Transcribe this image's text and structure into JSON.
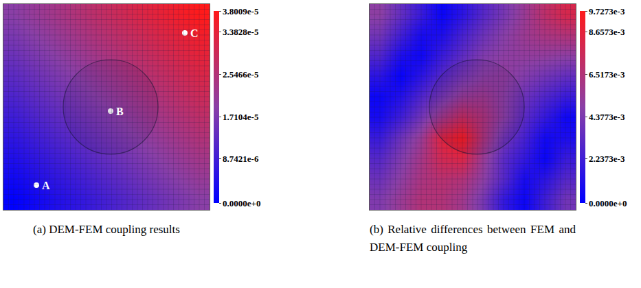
{
  "chart_data": [
    {
      "type": "heatmap",
      "caption": "(a) DEM-FEM coupling results",
      "tick_labels": false,
      "x": [
        0.05,
        0.15,
        0.25,
        0.35,
        0.45,
        0.55,
        0.65,
        0.75,
        0.85,
        0.95
      ],
      "y": [
        0.05,
        0.15,
        0.25,
        0.35,
        0.45,
        0.55,
        0.65,
        0.75,
        0.85,
        0.95
      ],
      "xlim": [
        0,
        1
      ],
      "ylim": [
        0,
        1
      ],
      "cells": [
        [
          0,
          2.1e-06,
          4.2e-06,
          6.3e-06,
          8.4e-06,
          1.06e-05,
          1.27e-05,
          1.48e-05,
          1.69e-05,
          1.9e-05
        ],
        [
          2.1e-06,
          4.2e-06,
          6.3e-06,
          8.4e-06,
          1.06e-05,
          1.27e-05,
          1.48e-05,
          1.69e-05,
          1.9e-05,
          2.11e-05
        ],
        [
          4.2e-06,
          6.3e-06,
          8.4e-06,
          1.06e-05,
          1.27e-05,
          1.48e-05,
          1.69e-05,
          1.9e-05,
          2.11e-05,
          2.32e-05
        ],
        [
          6.3e-06,
          8.4e-06,
          1.06e-05,
          1.27e-05,
          1.48e-05,
          1.69e-05,
          1.9e-05,
          2.11e-05,
          2.32e-05,
          2.53e-05
        ],
        [
          8.4e-06,
          1.06e-05,
          1.27e-05,
          1.48e-05,
          1.69e-05,
          1.9e-05,
          2.11e-05,
          2.32e-05,
          2.53e-05,
          2.74e-05
        ],
        [
          1.06e-05,
          1.27e-05,
          1.48e-05,
          1.69e-05,
          1.9e-05,
          2.11e-05,
          2.32e-05,
          2.53e-05,
          2.74e-05,
          2.95e-05
        ],
        [
          1.27e-05,
          1.48e-05,
          1.69e-05,
          1.9e-05,
          2.11e-05,
          2.32e-05,
          2.53e-05,
          2.74e-05,
          2.95e-05,
          3.17e-05
        ],
        [
          1.48e-05,
          1.69e-05,
          1.9e-05,
          2.11e-05,
          2.32e-05,
          2.53e-05,
          2.74e-05,
          2.95e-05,
          3.17e-05,
          3.38e-05
        ],
        [
          1.69e-05,
          1.9e-05,
          2.11e-05,
          2.32e-05,
          2.53e-05,
          2.74e-05,
          2.95e-05,
          3.17e-05,
          3.38e-05,
          3.59e-05
        ],
        [
          1.9e-05,
          2.11e-05,
          2.32e-05,
          2.53e-05,
          2.74e-05,
          2.95e-05,
          3.17e-05,
          3.38e-05,
          3.59e-05,
          3.8e-05
        ]
      ],
      "colorbar": {
        "range": [
          0,
          3.8009e-05
        ],
        "ticks": [
          {
            "value": 0,
            "label": "0.0000e+0"
          },
          {
            "value": 8.7421e-06,
            "label": "8.7421e-6"
          },
          {
            "value": 1.7104e-05,
            "label": "1.7104e-5"
          },
          {
            "value": 2.5466e-05,
            "label": "2.5466e-5"
          },
          {
            "value": 3.3828e-05,
            "label": "3.3828e-5"
          },
          {
            "value": 3.8009e-05,
            "label": "3.8009e-5"
          }
        ]
      },
      "annotations": [
        {
          "text": "A",
          "x": 0.16,
          "y": 0.12
        },
        {
          "text": "B",
          "x": 0.52,
          "y": 0.48
        },
        {
          "text": "C",
          "x": 0.88,
          "y": 0.86
        }
      ]
    },
    {
      "type": "heatmap",
      "caption": "(b) Relative differences between FEM and DEM-FEM coupling",
      "tick_labels": false,
      "x": [
        0.05,
        0.15,
        0.25,
        0.35,
        0.45,
        0.55,
        0.65,
        0.75,
        0.85,
        0.95
      ],
      "y": [
        0.05,
        0.15,
        0.25,
        0.35,
        0.45,
        0.55,
        0.65,
        0.75,
        0.85,
        0.95
      ],
      "xlim": [
        0,
        1
      ],
      "ylim": [
        0,
        1
      ],
      "cells": [
        [
          0.0045,
          0.0055,
          0.0065,
          0.0065,
          0.0058,
          0.0042,
          0.0018,
          0.0004,
          0.0022,
          0.004
        ],
        [
          0.0038,
          0.005,
          0.0062,
          0.0068,
          0.0065,
          0.005,
          0.003,
          0.0008,
          0.0015,
          0.003
        ],
        [
          0.003,
          0.0045,
          0.006,
          0.0078,
          0.0082,
          0.0055,
          0.0032,
          0.0018,
          0.0003,
          0.002
        ],
        [
          0.002,
          0.0038,
          0.0055,
          0.0085,
          0.0097,
          0.0065,
          0.004,
          0.0025,
          0.0006,
          0.001
        ],
        [
          0.0008,
          0.0022,
          0.004,
          0.006,
          0.0075,
          0.0065,
          0.005,
          0.0032,
          0.0018,
          0.0005
        ],
        [
          0.0004,
          0.0012,
          0.0028,
          0.0042,
          0.0055,
          0.0058,
          0.005,
          0.0038,
          0.0028,
          0.002
        ],
        [
          0.0015,
          0.0002,
          0.0015,
          0.003,
          0.0042,
          0.005,
          0.0052,
          0.0046,
          0.004,
          0.0035
        ],
        [
          0.0028,
          0.001,
          0.0005,
          0.002,
          0.0033,
          0.0045,
          0.005,
          0.0052,
          0.0052,
          0.005
        ],
        [
          0.004,
          0.0023,
          0.0008,
          0.001,
          0.0025,
          0.0038,
          0.0048,
          0.0056,
          0.0062,
          0.0065
        ],
        [
          0.005,
          0.0035,
          0.002,
          0.0003,
          0.0015,
          0.003,
          0.0042,
          0.0055,
          0.007,
          0.008
        ]
      ],
      "colorbar": {
        "range": [
          0,
          0.0097273
        ],
        "ticks": [
          {
            "value": 0,
            "label": "0.0000e+0"
          },
          {
            "value": 0.0022373,
            "label": "2.2373e-3"
          },
          {
            "value": 0.0043773,
            "label": "4.3773e-3"
          },
          {
            "value": 0.0065173,
            "label": "6.5173e-3"
          },
          {
            "value": 0.0086573,
            "label": "8.6573e-3"
          },
          {
            "value": 0.0097273,
            "label": "9.7273e-3"
          }
        ]
      }
    }
  ]
}
